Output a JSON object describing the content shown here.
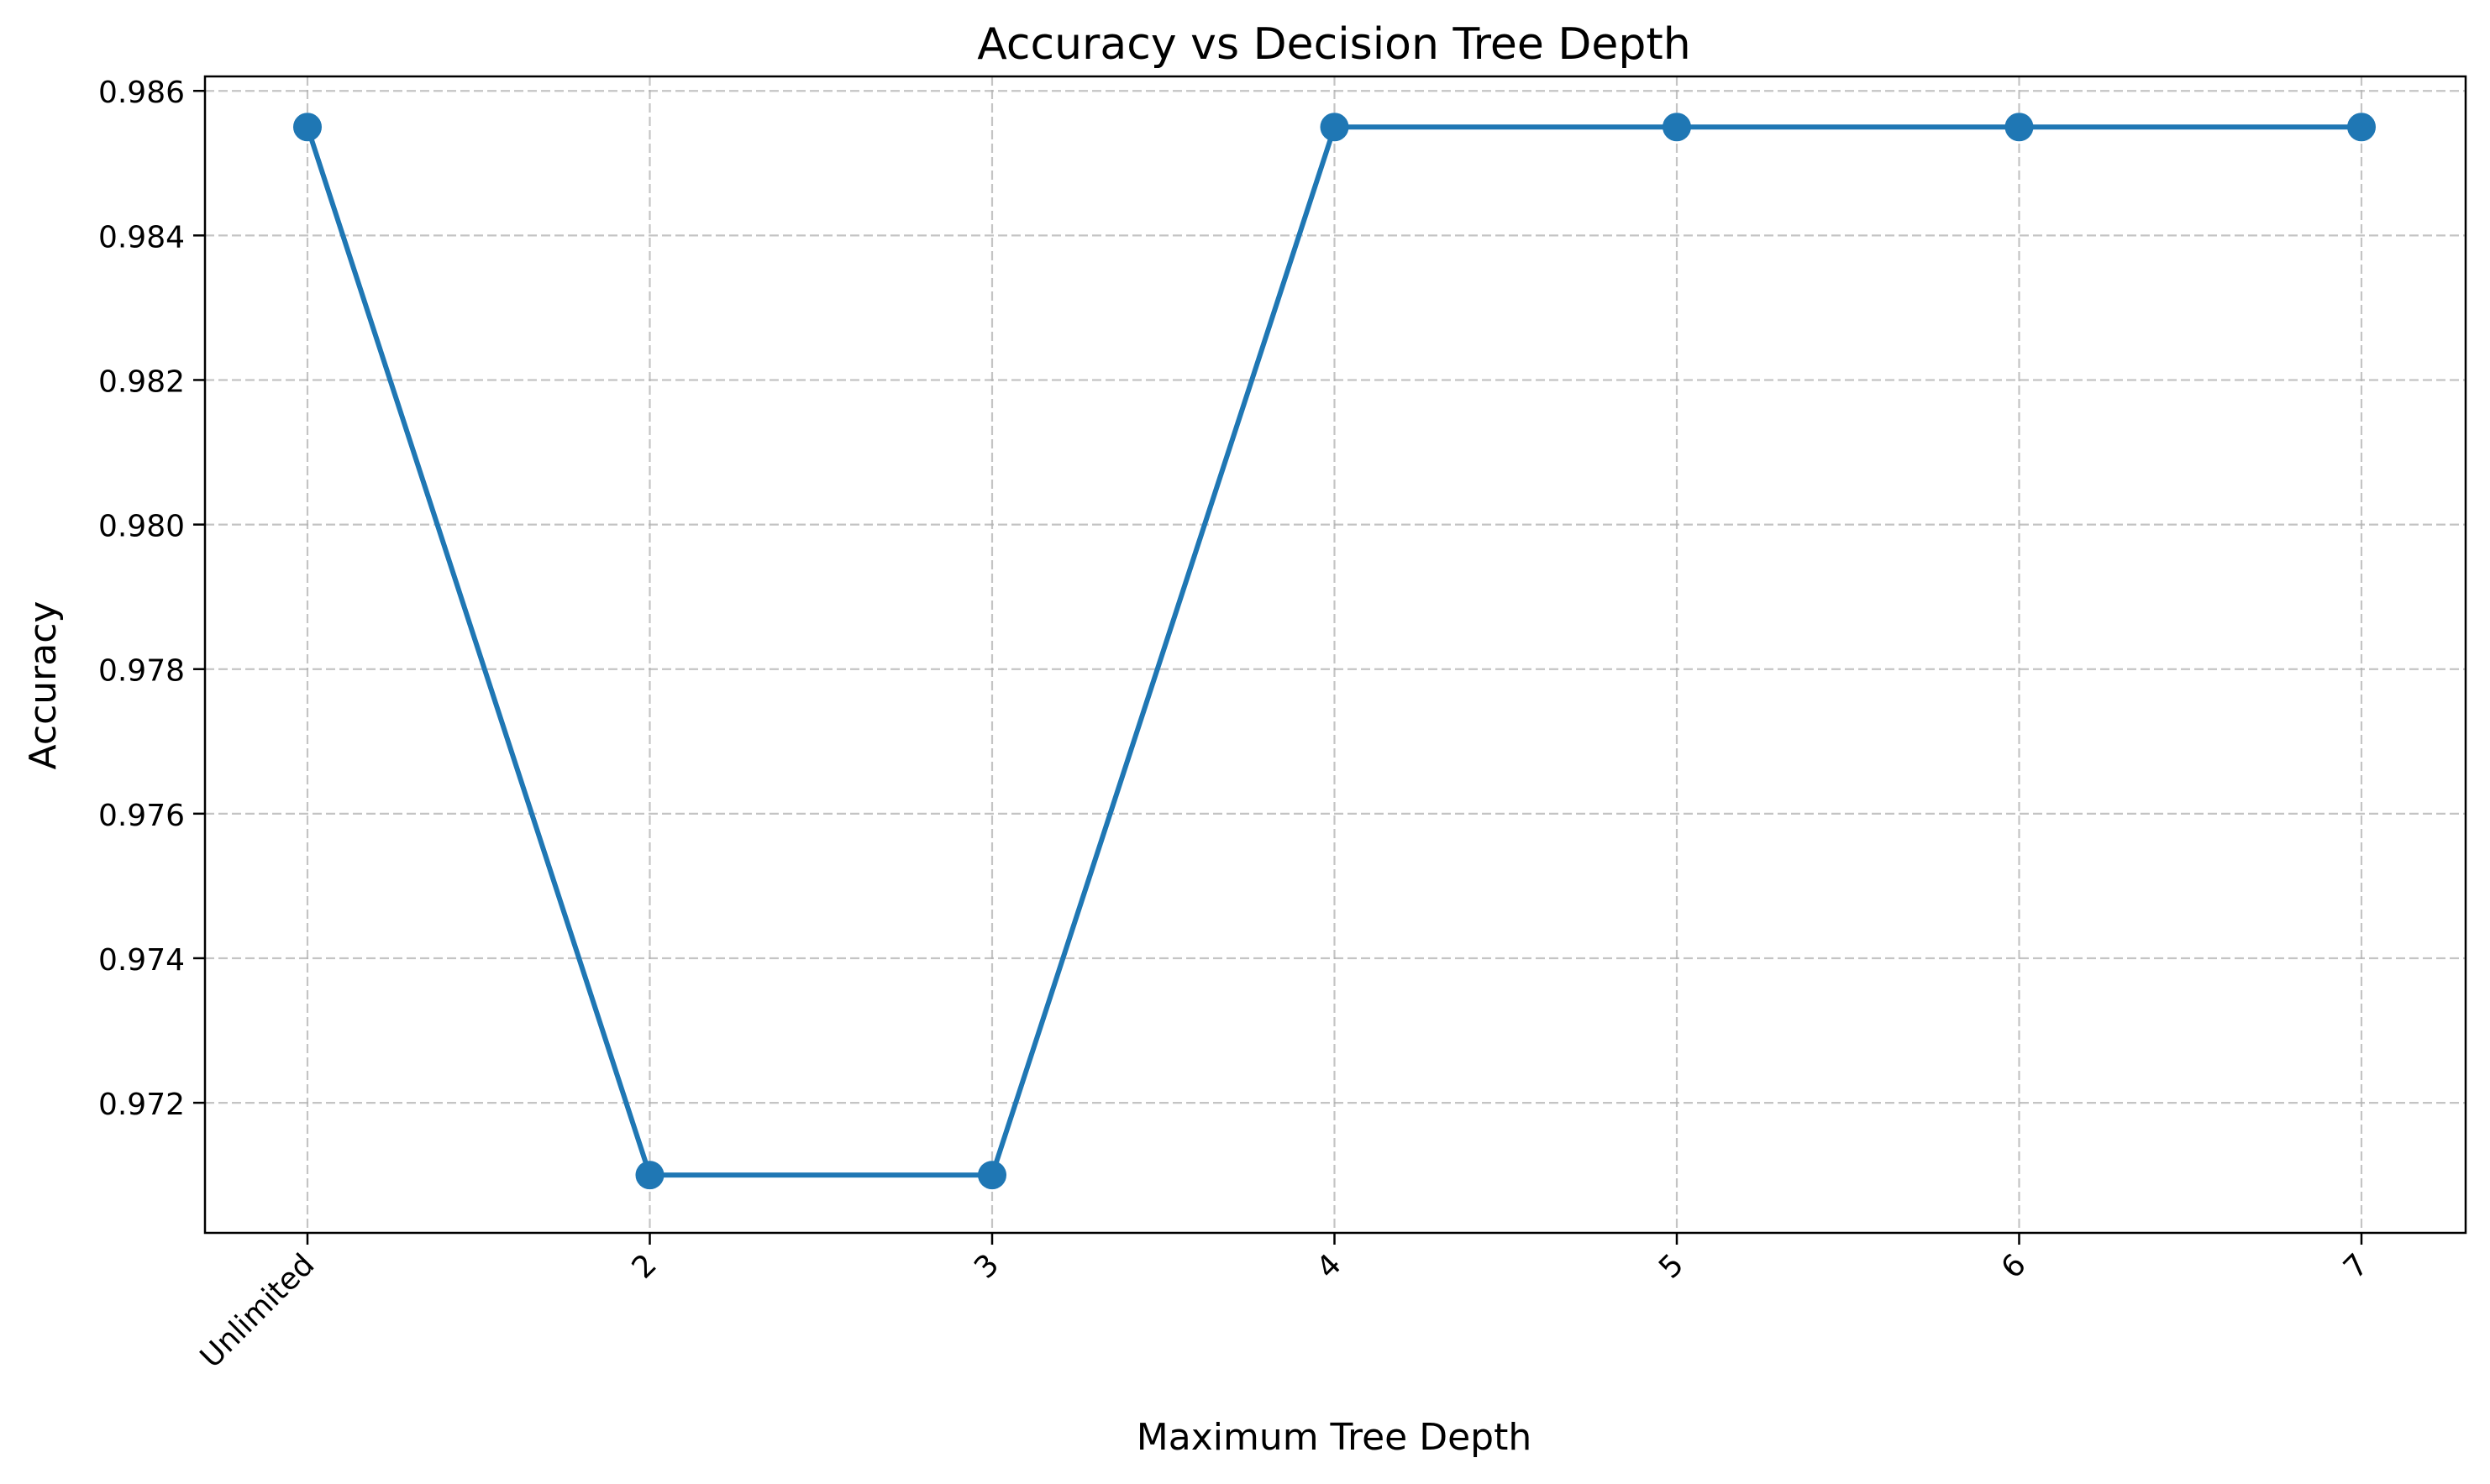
{
  "chart_data": {
    "type": "line",
    "title": "Accuracy vs Decision Tree Depth",
    "xlabel": "Maximum Tree Depth",
    "ylabel": "Accuracy",
    "categories": [
      "Unlimited",
      "2",
      "3",
      "4",
      "5",
      "6",
      "7"
    ],
    "series": [
      {
        "values": [
          0.9855,
          0.971,
          0.971,
          0.9855,
          0.9855,
          0.9855,
          0.9855
        ],
        "color": "#1f77b4",
        "marker": "circle"
      }
    ],
    "ylim": [
      0.9702,
      0.9862
    ],
    "yticks": [
      0.972,
      0.974,
      0.976,
      0.978,
      0.98,
      0.982,
      0.984,
      0.986
    ],
    "ytick_labels": [
      "0.972",
      "0.974",
      "0.976",
      "0.978",
      "0.980",
      "0.982",
      "0.984",
      "0.986"
    ],
    "grid": true,
    "grid_style": "dashed",
    "x_tick_rotation_deg": 45,
    "legend": "none"
  }
}
